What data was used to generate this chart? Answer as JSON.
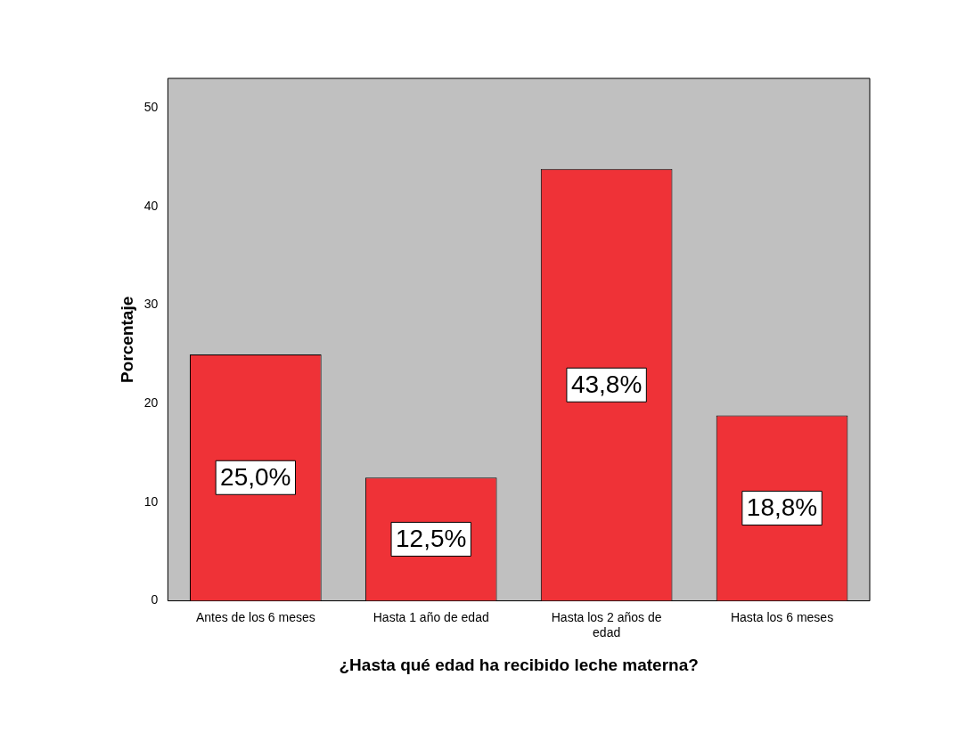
{
  "chart_data": {
    "type": "bar",
    "xlabel": "¿Hasta qué edad ha recibido leche materna?",
    "ylabel": "Porcentaje",
    "categories": [
      "Antes de los 6 meses",
      "Hasta 1 año de edad",
      "Hasta los 2 años de edad",
      "Hasta los 6 meses"
    ],
    "values": [
      25.0,
      12.5,
      43.8,
      18.8
    ],
    "color": "#ef3237",
    "value_labels": [
      "25,0%",
      "12,5%",
      "43,8%",
      "18,8%"
    ],
    "ylim": [
      0,
      53
    ],
    "yticks": [
      0,
      10,
      20,
      30,
      40,
      50
    ],
    "grid": false,
    "legend": false
  }
}
